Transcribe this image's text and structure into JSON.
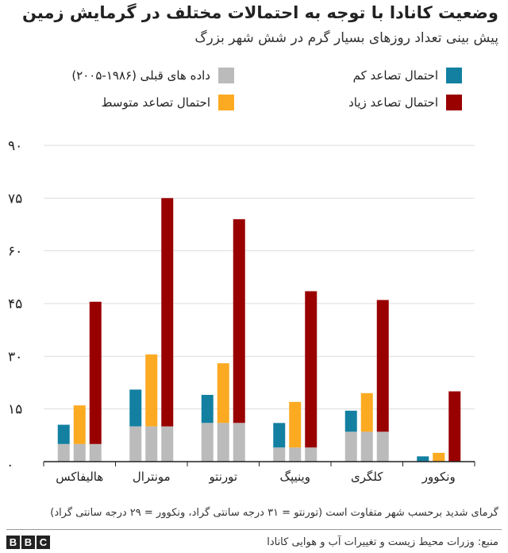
{
  "title": "وضعیت کانادا با توجه به احتمالات مختلف در گرمایش زمین",
  "subtitle": "پیش بینی تعداد روزهای بسیار گرم در شش شهر بزرگ",
  "legend": [
    {
      "label": "احتمال تصاعد کم",
      "color": "#1380a1"
    },
    {
      "label": "داده های قبلی (۱۹۸۶-۲۰۰۵)",
      "color": "#bbbbbb"
    },
    {
      "label": "احتمال تصاعد زیاد",
      "color": "#990000"
    },
    {
      "label": "احتمال تصاعد متوسط",
      "color": "#fbaa21"
    }
  ],
  "footnote": "گرمای شدید برحسب شهر متفاوت است (تورنتو = ۳۱ درجه سانتی گراد، ونکوور = ۲۹ درجه سانتی گراد)",
  "source": "منبع: وزرات محیط زیست و تغییرات آب و هوایی کانادا",
  "brand": [
    "B",
    "B",
    "C"
  ],
  "chart_data": {
    "type": "bar",
    "ylim": [
      0,
      90
    ],
    "yticks": [
      0,
      15,
      30,
      45,
      60,
      75,
      90
    ],
    "ytick_labels": [
      ".",
      "۱۵",
      "۳۰",
      "۴۵",
      "۶۰",
      "۷۵",
      "۹۰"
    ],
    "grid": true,
    "categories": [
      "هالیفاکس",
      "مونترال",
      "تورنتو",
      "وینیپگ",
      "کلگری",
      "ونکوور"
    ],
    "stack_note": "Each projection bar includes the historical grey base at its bottom.",
    "series": [
      {
        "name": "داده های قبلی (۱۹۸۶-۲۰۰۵)",
        "color": "#bbbbbb",
        "values": [
          5,
          10,
          11,
          4,
          8.5,
          0
        ]
      },
      {
        "name": "احتمال تصاعد کم",
        "color": "#1380a1",
        "values": [
          10.5,
          20.5,
          19,
          11,
          14.5,
          1.5
        ]
      },
      {
        "name": "احتمال تصاعد متوسط",
        "color": "#fbaa21",
        "values": [
          16,
          30.5,
          28,
          17,
          19.5,
          2.5
        ]
      },
      {
        "name": "احتمال تصاعد زیاد",
        "color": "#990000",
        "values": [
          45.5,
          75,
          69,
          48.5,
          46,
          20
        ]
      }
    ]
  }
}
